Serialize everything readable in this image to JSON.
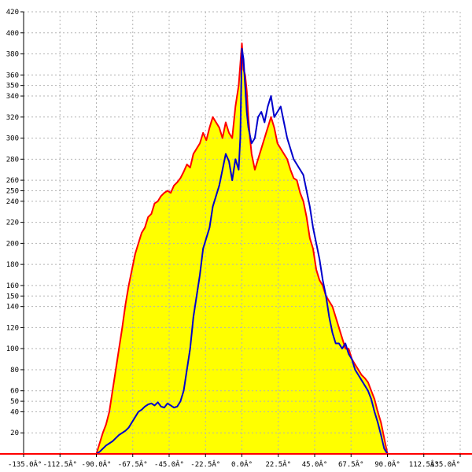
{
  "chart_data": {
    "type": "area",
    "title": "",
    "xlabel": "",
    "ylabel": "",
    "xlim": [
      -135,
      135
    ],
    "ylim": [
      0,
      420
    ],
    "grid": true,
    "x_ticks": [
      -135,
      -112.5,
      -90,
      -67.5,
      -45,
      -22.5,
      0,
      22.5,
      45,
      67.5,
      90,
      112.5,
      135
    ],
    "x_tick_labels": [
      "-135.0Â°",
      "-112.5Â°",
      "-90.0Â°",
      "-67.5Â°",
      "-45.0Â°",
      "-22.5Â°",
      "0.0Â°",
      "22.5Â°",
      "45.0Â°",
      "67.5Â°",
      "90.0Â°",
      "112.5Â°",
      "135.0Â°"
    ],
    "y_ticks": [
      20,
      40,
      50,
      60,
      80,
      100,
      120,
      140,
      150,
      160,
      180,
      200,
      220,
      240,
      250,
      260,
      280,
      300,
      320,
      340,
      350,
      360,
      380,
      400,
      420
    ],
    "y_tick_labels": [
      "20",
      "40",
      "50",
      "60",
      "80",
      "100",
      "120",
      "140",
      "150",
      "160",
      "180",
      "200",
      "220",
      "240",
      "250",
      "260",
      "280",
      "300",
      "320",
      "340",
      "350",
      "360",
      "380",
      "400",
      "420"
    ],
    "colors": {
      "fill": "#ffff00",
      "red": "#ff0000",
      "blue": "#0000cc",
      "baseline": "#ff0000"
    },
    "series": [
      {
        "color": "red",
        "filled": true,
        "x": [
          -90,
          -88,
          -86,
          -84,
          -82,
          -80,
          -78,
          -76,
          -74,
          -72,
          -70,
          -68,
          -66,
          -64,
          -62,
          -60,
          -58,
          -56,
          -54,
          -52,
          -50,
          -48,
          -46,
          -44,
          -42,
          -40,
          -38,
          -36,
          -34,
          -32,
          -30,
          -28,
          -26,
          -24,
          -22,
          -20,
          -18,
          -16,
          -14,
          -12,
          -10,
          -8,
          -6,
          -4,
          -2,
          -1,
          0,
          1,
          2,
          3,
          4,
          5,
          6,
          8,
          10,
          12,
          14,
          16,
          18,
          20,
          22,
          24,
          26,
          28,
          30,
          32,
          34,
          36,
          38,
          40,
          42,
          44,
          46,
          48,
          50,
          52,
          54,
          56,
          58,
          60,
          62,
          64,
          66,
          68,
          70,
          72,
          74,
          76,
          78,
          80,
          82,
          84,
          86,
          88,
          90
        ],
        "y": [
          0,
          10,
          20,
          28,
          40,
          60,
          80,
          100,
          120,
          142,
          160,
          175,
          190,
          200,
          210,
          215,
          225,
          228,
          238,
          240,
          245,
          248,
          250,
          248,
          255,
          258,
          262,
          268,
          275,
          272,
          285,
          290,
          295,
          305,
          298,
          310,
          320,
          315,
          310,
          300,
          315,
          305,
          300,
          330,
          350,
          370,
          390,
          365,
          360,
          345,
          320,
          300,
          285,
          270,
          280,
          290,
          300,
          310,
          320,
          310,
          295,
          290,
          285,
          280,
          270,
          262,
          260,
          248,
          240,
          225,
          205,
          195,
          175,
          165,
          160,
          150,
          145,
          140,
          130,
          120,
          110,
          100,
          100,
          90,
          85,
          80,
          75,
          72,
          68,
          60,
          52,
          40,
          30,
          15,
          0
        ]
      },
      {
        "color": "blue",
        "filled": false,
        "x": [
          -90,
          -88,
          -86,
          -84,
          -82,
          -80,
          -78,
          -76,
          -74,
          -72,
          -70,
          -68,
          -66,
          -64,
          -62,
          -60,
          -58,
          -56,
          -54,
          -52,
          -50,
          -48,
          -46,
          -44,
          -42,
          -40,
          -38,
          -36,
          -34,
          -32,
          -30,
          -28,
          -26,
          -24,
          -22,
          -20,
          -18,
          -16,
          -14,
          -12,
          -10,
          -8,
          -6,
          -4,
          -2,
          -1,
          0,
          1,
          2,
          3,
          4,
          6,
          8,
          10,
          12,
          14,
          16,
          18,
          20,
          22,
          24,
          26,
          28,
          30,
          32,
          34,
          36,
          38,
          40,
          42,
          44,
          46,
          48,
          50,
          52,
          54,
          56,
          58,
          60,
          62,
          64,
          66,
          68,
          70,
          72,
          74,
          76,
          78,
          80,
          82,
          84,
          86,
          88,
          90
        ],
        "y": [
          0,
          2,
          5,
          8,
          10,
          12,
          15,
          18,
          20,
          22,
          25,
          30,
          35,
          40,
          42,
          45,
          47,
          48,
          46,
          49,
          45,
          44,
          48,
          46,
          44,
          45,
          50,
          60,
          80,
          100,
          130,
          150,
          170,
          195,
          205,
          215,
          235,
          245,
          255,
          270,
          285,
          278,
          260,
          280,
          270,
          300,
          385,
          375,
          350,
          325,
          310,
          295,
          300,
          320,
          325,
          315,
          330,
          340,
          320,
          325,
          330,
          315,
          300,
          290,
          280,
          275,
          270,
          265,
          250,
          235,
          215,
          200,
          185,
          165,
          150,
          130,
          115,
          105,
          105,
          100,
          105,
          95,
          90,
          80,
          75,
          70,
          65,
          60,
          52,
          40,
          30,
          18,
          5,
          0
        ]
      }
    ]
  }
}
